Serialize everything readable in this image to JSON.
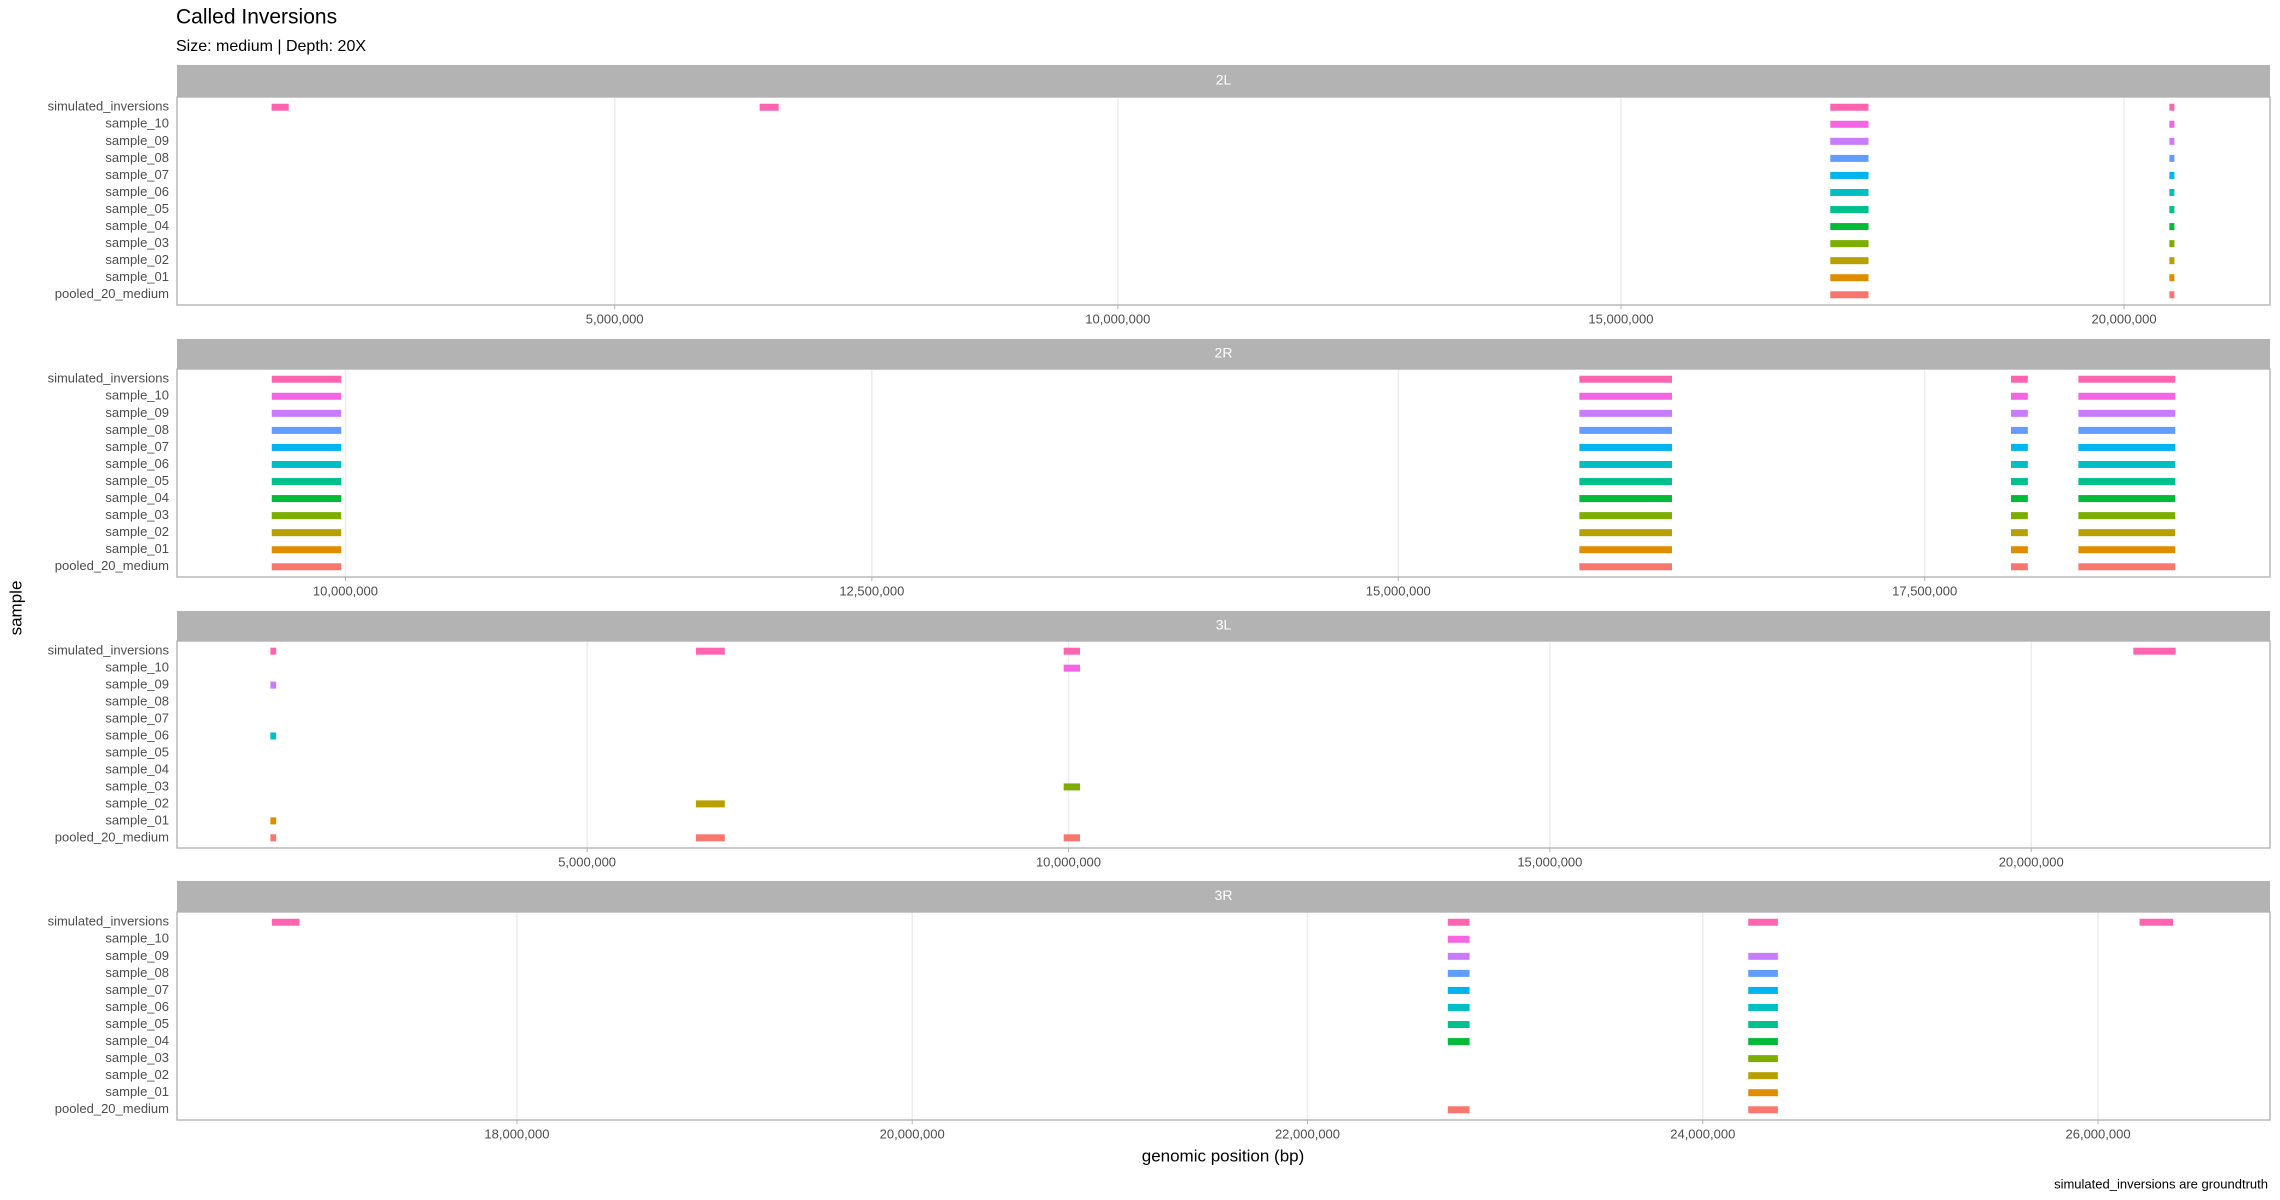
{
  "chart_data": {
    "type": "segment",
    "title": "Called Inversions",
    "subtitle": "Size: medium | Depth: 20X",
    "xlabel": "genomic position (bp)",
    "ylabel": "sample",
    "caption": "simulated_inversions are groundtruth",
    "categories": [
      "simulated_inversions",
      "sample_10",
      "sample_09",
      "sample_08",
      "sample_07",
      "sample_06",
      "sample_05",
      "sample_04",
      "sample_03",
      "sample_02",
      "sample_01",
      "pooled_20_medium"
    ],
    "colors": [
      "#FF64B0",
      "#F564E3",
      "#C77CFF",
      "#619CFF",
      "#00B4F0",
      "#00BFC4",
      "#00C08B",
      "#00BA38",
      "#7CAE00",
      "#B79F00",
      "#DE8C00",
      "#F8766D"
    ],
    "panels": [
      {
        "strip": "2L",
        "xlim": [
          650000,
          21450000
        ],
        "xticks": [
          {
            "value": 5000000,
            "label": "5,000,000"
          },
          {
            "value": 10000000,
            "label": "10,000,000"
          },
          {
            "value": 15000000,
            "label": "15,000,000"
          },
          {
            "value": 20000000,
            "label": "20,000,000"
          }
        ],
        "rows": [
          [
            [
              1590000,
              1760000
            ],
            [
              6440000,
              6630000
            ],
            [
              17080000,
              17460000
            ],
            [
              20450000,
              20500000
            ]
          ],
          [
            [
              17080000,
              17460000
            ],
            [
              20450000,
              20500000
            ]
          ],
          [
            [
              17080000,
              17460000
            ],
            [
              20450000,
              20500000
            ]
          ],
          [
            [
              17080000,
              17460000
            ],
            [
              20450000,
              20500000
            ]
          ],
          [
            [
              17080000,
              17460000
            ],
            [
              20450000,
              20500000
            ]
          ],
          [
            [
              17080000,
              17460000
            ],
            [
              20450000,
              20500000
            ]
          ],
          [
            [
              17080000,
              17460000
            ],
            [
              20450000,
              20500000
            ]
          ],
          [
            [
              17080000,
              17460000
            ],
            [
              20450000,
              20500000
            ]
          ],
          [
            [
              17080000,
              17460000
            ],
            [
              20450000,
              20500000
            ]
          ],
          [
            [
              17080000,
              17460000
            ],
            [
              20450000,
              20500000
            ]
          ],
          [
            [
              17080000,
              17460000
            ],
            [
              20450000,
              20500000
            ]
          ],
          [
            [
              17080000,
              17460000
            ],
            [
              20450000,
              20500000
            ]
          ]
        ]
      },
      {
        "strip": "2R",
        "xlim": [
          9200000,
          19140000
        ],
        "xticks": [
          {
            "value": 10000000,
            "label": "10,000,000"
          },
          {
            "value": 12500000,
            "label": "12,500,000"
          },
          {
            "value": 15000000,
            "label": "15,000,000"
          },
          {
            "value": 17500000,
            "label": "17,500,000"
          }
        ],
        "rows": [
          [
            [
              9650000,
              9980000
            ],
            [
              15860000,
              16300000
            ],
            [
              17910000,
              17990000
            ],
            [
              18230000,
              18690000
            ]
          ],
          [
            [
              9650000,
              9980000
            ],
            [
              15860000,
              16300000
            ],
            [
              17910000,
              17990000
            ],
            [
              18230000,
              18690000
            ]
          ],
          [
            [
              9650000,
              9980000
            ],
            [
              15860000,
              16300000
            ],
            [
              17910000,
              17990000
            ],
            [
              18230000,
              18690000
            ]
          ],
          [
            [
              9650000,
              9980000
            ],
            [
              15860000,
              16300000
            ],
            [
              17910000,
              17990000
            ],
            [
              18230000,
              18690000
            ]
          ],
          [
            [
              9650000,
              9980000
            ],
            [
              15860000,
              16300000
            ],
            [
              17910000,
              17990000
            ],
            [
              18230000,
              18690000
            ]
          ],
          [
            [
              9650000,
              9980000
            ],
            [
              15860000,
              16300000
            ],
            [
              17910000,
              17990000
            ],
            [
              18230000,
              18690000
            ]
          ],
          [
            [
              9650000,
              9980000
            ],
            [
              15860000,
              16300000
            ],
            [
              17910000,
              17990000
            ],
            [
              18230000,
              18690000
            ]
          ],
          [
            [
              9650000,
              9980000
            ],
            [
              15860000,
              16300000
            ],
            [
              17910000,
              17990000
            ],
            [
              18230000,
              18690000
            ]
          ],
          [
            [
              9650000,
              9980000
            ],
            [
              15860000,
              16300000
            ],
            [
              17910000,
              17990000
            ],
            [
              18230000,
              18690000
            ]
          ],
          [
            [
              9650000,
              9980000
            ],
            [
              15860000,
              16300000
            ],
            [
              17910000,
              17990000
            ],
            [
              18230000,
              18690000
            ]
          ],
          [
            [
              9650000,
              9980000
            ],
            [
              15860000,
              16300000
            ],
            [
              17910000,
              17990000
            ],
            [
              18230000,
              18690000
            ]
          ],
          [
            [
              9650000,
              9980000
            ],
            [
              15860000,
              16300000
            ],
            [
              17910000,
              17990000
            ],
            [
              18230000,
              18690000
            ]
          ]
        ]
      },
      {
        "strip": "3L",
        "xlim": [
          740000,
          22480000
        ],
        "xticks": [
          {
            "value": 5000000,
            "label": "5,000,000"
          },
          {
            "value": 10000000,
            "label": "10,000,000"
          },
          {
            "value": 15000000,
            "label": "15,000,000"
          },
          {
            "value": 20000000,
            "label": "20,000,000"
          }
        ],
        "rows": [
          [
            [
              1710000,
              1770000
            ],
            [
              6130000,
              6430000
            ],
            [
              9950000,
              10120000
            ],
            [
              21060000,
              21500000
            ]
          ],
          [
            [
              9950000,
              10120000
            ]
          ],
          [
            [
              1710000,
              1770000
            ]
          ],
          [],
          [],
          [
            [
              1710000,
              1770000
            ]
          ],
          [],
          [],
          [
            [
              9950000,
              10120000
            ]
          ],
          [
            [
              6130000,
              6430000
            ]
          ],
          [
            [
              1710000,
              1770000
            ]
          ],
          [
            [
              1710000,
              1770000
            ],
            [
              6130000,
              6430000
            ],
            [
              9950000,
              10120000
            ]
          ]
        ]
      },
      {
        "strip": "3R",
        "xlim": [
          16280000,
          26870000
        ],
        "xticks": [
          {
            "value": 18000000,
            "label": "18,000,000"
          },
          {
            "value": 20000000,
            "label": "20,000,000"
          },
          {
            "value": 22000000,
            "label": "22,000,000"
          },
          {
            "value": 24000000,
            "label": "24,000,000"
          },
          {
            "value": 26000000,
            "label": "26,000,000"
          }
        ],
        "rows": [
          [
            [
              16760000,
              16900000
            ],
            [
              22710000,
              22820000
            ],
            [
              24230000,
              24380000
            ],
            [
              26210000,
              26380000
            ]
          ],
          [
            [
              22710000,
              22820000
            ]
          ],
          [
            [
              22710000,
              22820000
            ],
            [
              24230000,
              24380000
            ]
          ],
          [
            [
              22710000,
              22820000
            ],
            [
              24230000,
              24380000
            ]
          ],
          [
            [
              22710000,
              22820000
            ],
            [
              24230000,
              24380000
            ]
          ],
          [
            [
              22710000,
              22820000
            ],
            [
              24230000,
              24380000
            ]
          ],
          [
            [
              22710000,
              22820000
            ],
            [
              24230000,
              24380000
            ]
          ],
          [
            [
              22710000,
              22820000
            ],
            [
              24230000,
              24380000
            ]
          ],
          [
            [
              24230000,
              24380000
            ]
          ],
          [
            [
              24230000,
              24380000
            ]
          ],
          [
            [
              24230000,
              24380000
            ]
          ],
          [
            [
              22710000,
              22820000
            ],
            [
              24230000,
              24380000
            ]
          ]
        ]
      }
    ]
  }
}
